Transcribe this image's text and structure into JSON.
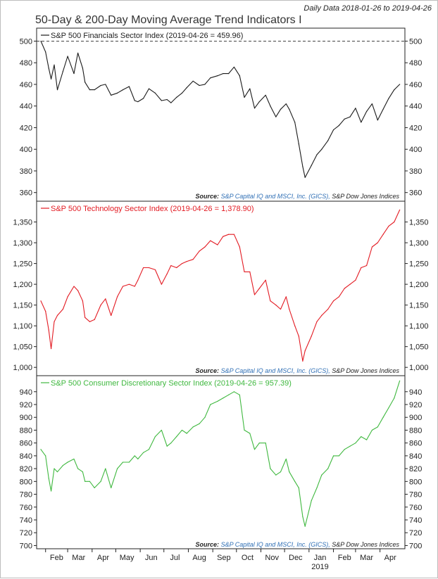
{
  "header": {
    "date_range": "Daily Data 2018-01-26 to 2019-04-26",
    "title": "50-Day & 200-Day Moving Average Trend Indicators I"
  },
  "x_axis": {
    "months": [
      "Feb",
      "Mar",
      "Apr",
      "May",
      "Jun",
      "Jul",
      "Aug",
      "Sep",
      "Oct",
      "Nov",
      "Dec",
      "Jan",
      "Feb",
      "Mar",
      "Apr"
    ],
    "year_label": "2019"
  },
  "colors": {
    "financials": "#1a1a1a",
    "technology": "#e31b23",
    "consumer": "#3fb83f",
    "source_blue": "#2f6fb5"
  },
  "source": {
    "label": "Source:",
    "provider": "S&P Capital IQ and MSCI, Inc. (GICS),",
    "publisher": "S&P Dow Jones Indices"
  },
  "chart_data": [
    {
      "type": "line",
      "legend": "S&P 500 Financials Sector Index (2019-04-26 = 459.96)",
      "ylim": [
        352,
        512
      ],
      "yticks": [
        "500",
        "480",
        "460",
        "440",
        "420",
        "400",
        "380",
        "360"
      ],
      "reference_line": 500,
      "x": [
        "2018-01-26",
        "2018-02-01",
        "2018-02-05",
        "2018-02-08",
        "2018-02-12",
        "2018-02-16",
        "2018-02-23",
        "2018-03-01",
        "2018-03-09",
        "2018-03-14",
        "2018-03-20",
        "2018-03-23",
        "2018-03-29",
        "2018-04-04",
        "2018-04-12",
        "2018-04-18",
        "2018-04-25",
        "2018-05-03",
        "2018-05-10",
        "2018-05-18",
        "2018-05-25",
        "2018-05-29",
        "2018-06-05",
        "2018-06-12",
        "2018-06-20",
        "2018-06-28",
        "2018-07-05",
        "2018-07-10",
        "2018-07-17",
        "2018-07-24",
        "2018-07-30",
        "2018-08-07",
        "2018-08-15",
        "2018-08-22",
        "2018-08-29",
        "2018-09-07",
        "2018-09-14",
        "2018-09-21",
        "2018-09-28",
        "2018-10-05",
        "2018-10-11",
        "2018-10-18",
        "2018-10-24",
        "2018-10-30",
        "2018-11-07",
        "2018-11-13",
        "2018-11-20",
        "2018-11-26",
        "2018-12-03",
        "2018-12-07",
        "2018-12-14",
        "2018-12-19",
        "2018-12-24",
        "2018-12-27",
        "2019-01-04",
        "2019-01-11",
        "2019-01-17",
        "2019-01-25",
        "2019-02-01",
        "2019-02-08",
        "2019-02-15",
        "2019-02-22",
        "2019-03-01",
        "2019-03-08",
        "2019-03-15",
        "2019-03-22",
        "2019-03-29",
        "2019-04-05",
        "2019-04-12",
        "2019-04-19",
        "2019-04-26"
      ],
      "y": [
        500,
        490,
        475,
        465,
        478,
        455,
        472,
        486,
        470,
        489,
        475,
        462,
        455,
        455,
        459,
        460,
        450,
        452,
        455,
        458,
        445,
        444,
        447,
        456,
        452,
        445,
        446,
        443,
        448,
        452,
        457,
        463,
        459,
        460,
        466,
        468,
        470,
        470,
        476,
        468,
        448,
        456,
        438,
        444,
        450,
        440,
        430,
        437,
        442,
        437,
        425,
        405,
        384,
        374,
        385,
        395,
        400,
        408,
        418,
        422,
        428,
        430,
        438,
        425,
        435,
        442,
        427,
        437,
        447,
        455,
        460
      ]
    },
    {
      "type": "line",
      "legend": "S&P 500 Technology Sector Index (2019-04-26 = 1,378.90)",
      "ylim": [
        980,
        1400
      ],
      "yticks": [
        "1,350",
        "1,300",
        "1,250",
        "1,200",
        "1,150",
        "1,100",
        "1,050",
        "1,000"
      ],
      "x": [
        "2018-01-26",
        "2018-02-01",
        "2018-02-05",
        "2018-02-08",
        "2018-02-12",
        "2018-02-16",
        "2018-02-23",
        "2018-03-01",
        "2018-03-09",
        "2018-03-14",
        "2018-03-20",
        "2018-03-23",
        "2018-03-29",
        "2018-04-04",
        "2018-04-12",
        "2018-04-18",
        "2018-04-25",
        "2018-05-03",
        "2018-05-10",
        "2018-05-18",
        "2018-05-25",
        "2018-05-29",
        "2018-06-05",
        "2018-06-12",
        "2018-06-20",
        "2018-06-28",
        "2018-07-05",
        "2018-07-10",
        "2018-07-17",
        "2018-07-24",
        "2018-07-30",
        "2018-08-07",
        "2018-08-15",
        "2018-08-22",
        "2018-08-29",
        "2018-09-07",
        "2018-09-14",
        "2018-09-21",
        "2018-09-28",
        "2018-10-05",
        "2018-10-11",
        "2018-10-18",
        "2018-10-24",
        "2018-10-30",
        "2018-11-07",
        "2018-11-13",
        "2018-11-20",
        "2018-11-26",
        "2018-12-03",
        "2018-12-07",
        "2018-12-14",
        "2018-12-19",
        "2018-12-24",
        "2018-12-27",
        "2019-01-04",
        "2019-01-11",
        "2019-01-17",
        "2019-01-25",
        "2019-02-01",
        "2019-02-08",
        "2019-02-15",
        "2019-02-22",
        "2019-03-01",
        "2019-03-08",
        "2019-03-15",
        "2019-03-22",
        "2019-03-29",
        "2019-04-05",
        "2019-04-12",
        "2019-04-19",
        "2019-04-26"
      ],
      "y": [
        1160,
        1135,
        1090,
        1045,
        1110,
        1125,
        1140,
        1170,
        1195,
        1185,
        1160,
        1120,
        1110,
        1115,
        1150,
        1165,
        1125,
        1170,
        1195,
        1200,
        1195,
        1210,
        1240,
        1240,
        1235,
        1200,
        1225,
        1245,
        1240,
        1250,
        1255,
        1260,
        1280,
        1290,
        1305,
        1295,
        1315,
        1320,
        1320,
        1290,
        1230,
        1230,
        1175,
        1190,
        1210,
        1160,
        1150,
        1140,
        1170,
        1140,
        1100,
        1075,
        1015,
        1040,
        1075,
        1110,
        1125,
        1140,
        1160,
        1170,
        1190,
        1200,
        1210,
        1240,
        1245,
        1290,
        1300,
        1320,
        1340,
        1350,
        1379
      ]
    },
    {
      "type": "line",
      "legend": "S&P 500 Consumer Discretionary Sector Index (2019-04-26 = 957.39)",
      "ylim": [
        695,
        965
      ],
      "yticks": [
        "940",
        "920",
        "900",
        "880",
        "860",
        "840",
        "820",
        "800",
        "780",
        "760",
        "740",
        "720",
        "700"
      ],
      "x": [
        "2018-01-26",
        "2018-02-01",
        "2018-02-05",
        "2018-02-08",
        "2018-02-12",
        "2018-02-16",
        "2018-02-23",
        "2018-03-01",
        "2018-03-09",
        "2018-03-14",
        "2018-03-20",
        "2018-03-23",
        "2018-03-29",
        "2018-04-04",
        "2018-04-12",
        "2018-04-18",
        "2018-04-25",
        "2018-05-03",
        "2018-05-10",
        "2018-05-18",
        "2018-05-25",
        "2018-05-29",
        "2018-06-05",
        "2018-06-12",
        "2018-06-20",
        "2018-06-28",
        "2018-07-05",
        "2018-07-10",
        "2018-07-17",
        "2018-07-24",
        "2018-07-30",
        "2018-08-07",
        "2018-08-15",
        "2018-08-22",
        "2018-08-29",
        "2018-09-07",
        "2018-09-14",
        "2018-09-21",
        "2018-09-28",
        "2018-10-05",
        "2018-10-11",
        "2018-10-18",
        "2018-10-24",
        "2018-10-30",
        "2018-11-07",
        "2018-11-13",
        "2018-11-20",
        "2018-11-26",
        "2018-12-03",
        "2018-12-07",
        "2018-12-14",
        "2018-12-19",
        "2018-12-24",
        "2018-12-27",
        "2019-01-04",
        "2019-01-11",
        "2019-01-17",
        "2019-01-25",
        "2019-02-01",
        "2019-02-08",
        "2019-02-15",
        "2019-02-22",
        "2019-03-01",
        "2019-03-08",
        "2019-03-15",
        "2019-03-22",
        "2019-03-29",
        "2019-04-05",
        "2019-04-12",
        "2019-04-19",
        "2019-04-26"
      ],
      "y": [
        850,
        840,
        805,
        785,
        820,
        815,
        825,
        830,
        835,
        820,
        815,
        800,
        800,
        790,
        800,
        820,
        790,
        820,
        830,
        830,
        840,
        835,
        845,
        850,
        870,
        880,
        855,
        860,
        870,
        880,
        875,
        885,
        890,
        900,
        920,
        925,
        930,
        935,
        940,
        935,
        880,
        875,
        850,
        860,
        860,
        820,
        810,
        815,
        835,
        815,
        800,
        790,
        745,
        730,
        770,
        790,
        810,
        820,
        840,
        840,
        850,
        855,
        860,
        870,
        865,
        880,
        885,
        900,
        915,
        930,
        957
      ]
    }
  ]
}
